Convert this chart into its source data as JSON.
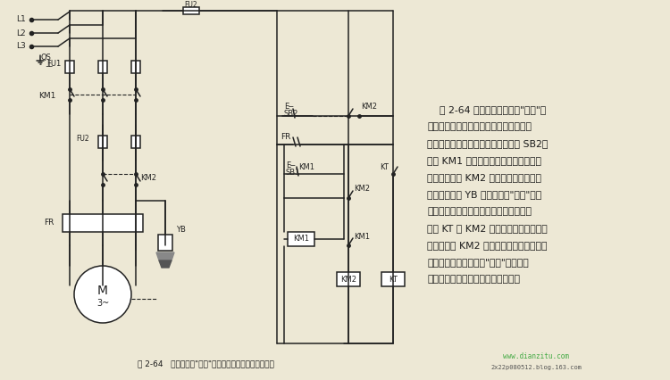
{
  "bg_color": "#ede8d5",
  "line_color": "#222222",
  "title": "图 2-64   通电前处于\"松开\"状态的电磁抱闸制动控制线路",
  "description": [
    "    图 2-64 所示为通电前处于\"松开\"状",
    "态的电磁抱闸制动控制线路。当需要电动",
    "机立即停止运行时，可按下停止按钮 SB2。",
    "这时 KM1 因断电而切除电动机电源，同",
    "时又使接触器 KM2 线圈通电并自锁，被",
    "通电的电磁铁 YB 的制动闸紧\"抱住\"制动",
    "轮，于是电动机使迅速停止运转，时间继",
    "电器 KT 被 KM2 的辅助触点通电后，经",
    "延时后再使 KM2 线圈断电，此时，电磁铁",
    "被断电而又恢复平时的\"松开\"状态，至",
    "此，电磁抱闸完成了一个制动周期。"
  ],
  "watermark1": "www.dianzitu.com",
  "watermark2": "2x22p080512.blog.163.com"
}
